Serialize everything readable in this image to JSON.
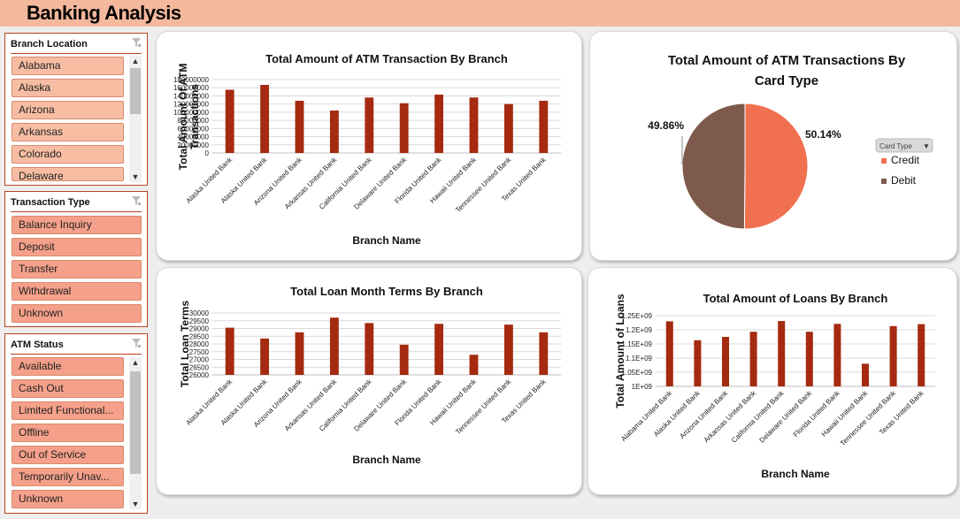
{
  "app": {
    "title": "Banking Analysis"
  },
  "slicers": {
    "branch_location": {
      "title": "Branch Location",
      "items": [
        "Alabama",
        "Alaska",
        "Arizona",
        "Arkansas",
        "Colorado",
        "Delaware"
      ]
    },
    "transaction_type": {
      "title": "Transaction Type",
      "items": [
        "Balance Inquiry",
        "Deposit",
        "Transfer",
        "Withdrawal",
        "Unknown"
      ]
    },
    "atm_status": {
      "title": "ATM Status",
      "items": [
        "Available",
        "Cash Out",
        "Limited Functional...",
        "Offline",
        "Out of Service",
        "Temporarily Unav...",
        "Unknown"
      ]
    }
  },
  "colors": {
    "bar": "#a52a0f",
    "credit": "#f07050",
    "debit": "#7e5a4c",
    "accent": "#f4b89c"
  },
  "chart_data": [
    {
      "id": "atm_by_branch",
      "type": "bar",
      "title": "Total Amount of ATM Transaction By Branch",
      "xlabel": "Branch Name",
      "ylabel": "Total Amount Of ATM Transactions",
      "ylim": [
        0,
        180000000
      ],
      "ytick_labels": [
        "0",
        "20000000",
        "40000000",
        "60000000",
        "80000000",
        "100000000",
        "120000000",
        "140000000",
        "160000000",
        "180000000"
      ],
      "categories": [
        "Alaska United Bank",
        "Alaska United Bank",
        "Arizona United Bank",
        "Arkansas United Bank",
        "California United Bank",
        "Delaware United Bank",
        "Florida United Bank",
        "Hawaii United Bank",
        "Tennessee United Bank",
        "Texas United Bank"
      ],
      "values": [
        155000000,
        167000000,
        128000000,
        104000000,
        136000000,
        122000000,
        143000000,
        136000000,
        120000000,
        128000000
      ]
    },
    {
      "id": "atm_by_card_type",
      "type": "pie",
      "title_lines": [
        "Total Amount of ATM Transactions By",
        "Card Type"
      ],
      "categories": [
        "Credit",
        "Debit"
      ],
      "values": [
        50.14,
        49.86
      ],
      "data_labels": [
        "50.14%",
        "49.86%"
      ],
      "legend_title": "Card Type",
      "legend": "right"
    },
    {
      "id": "loan_terms_by_branch",
      "type": "bar",
      "title": "Total Loan Month Terms By Branch",
      "xlabel": "Branch Name",
      "ylabel": "Total Loan Terms",
      "ylim": [
        26000,
        30000
      ],
      "ytick_labels": [
        "26000",
        "26500",
        "27000",
        "27500",
        "28000",
        "28500",
        "29000",
        "29500",
        "30000"
      ],
      "categories": [
        "Alaska United Bank",
        "Alaska United Bank",
        "Arizona United Bank",
        "Arkansas United Bank",
        "California United Bank",
        "Delaware United Bank",
        "Florida United Bank",
        "Hawaii United Bank",
        "Tennessee United Bank",
        "Texas United Bank"
      ],
      "values": [
        29050,
        28350,
        28750,
        29700,
        29350,
        27950,
        29300,
        27300,
        29250,
        28750
      ]
    },
    {
      "id": "loans_by_branch",
      "type": "bar",
      "title": "Total Amount of Loans By Branch",
      "xlabel": "Branch Name",
      "ylabel": "Total Amount of Loans",
      "ylim": [
        1000000000,
        1250000000
      ],
      "ytick_labels": [
        "1E+09",
        "1.05E+09",
        "1.1E+09",
        "1.15E+09",
        "1.2E+09",
        "1.25E+09"
      ],
      "categories": [
        "Alabama United Bank",
        "Alaska United Bank",
        "Arizona United Bank",
        "Arkansas United Bank",
        "California United Bank",
        "Delaware United Bank",
        "Florida United Bank",
        "Hawaii United Bank",
        "Tennessee United Bank",
        "Texas United Bank"
      ],
      "values": [
        1230000000,
        1163000000,
        1175000000,
        1193000000,
        1231000000,
        1193000000,
        1221000000,
        1080000000,
        1213000000,
        1220000000
      ]
    }
  ]
}
